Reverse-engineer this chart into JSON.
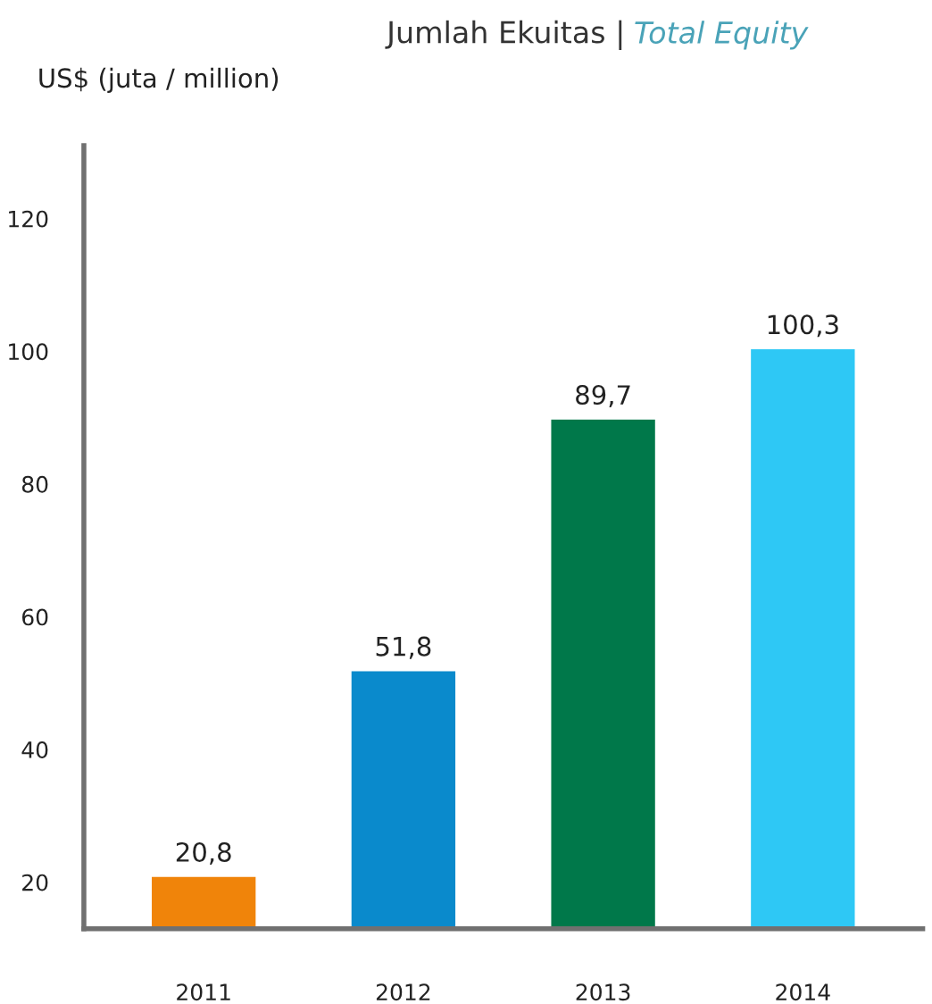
{
  "chart_data": {
    "type": "bar",
    "title": "Jumlah Ekuitas |",
    "subtitle": "Total Equity",
    "ylabel": "US$ (juta / million)",
    "categories": [
      "2011",
      "2012",
      "2013",
      "2014"
    ],
    "values": [
      20.8,
      51.8,
      89.7,
      100.3
    ],
    "colors": [
      "#f0840a",
      "#0a8acc",
      "#00784a",
      "#2ec8f5"
    ],
    "value_labels": [
      "20,8",
      "51,8",
      "89,7",
      "100,3"
    ],
    "ylim": [
      13,
      131
    ],
    "yticks": [
      20,
      40,
      60,
      80,
      100,
      120
    ],
    "grid": false,
    "legend": false
  }
}
